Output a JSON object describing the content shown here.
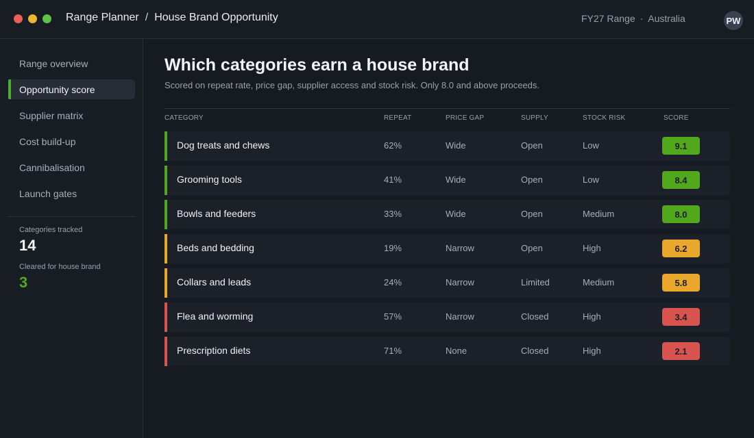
{
  "topbar": {
    "breadcrumb": [
      "Range Planner",
      "House Brand Opportunity"
    ],
    "breadcrumb_sep": "/",
    "range": "FY27 Range",
    "meta_sep": "·",
    "region": "Australia",
    "avatar_initials": "PW"
  },
  "sidebar": {
    "items": [
      {
        "label": "Range overview",
        "active": false
      },
      {
        "label": "Opportunity score",
        "active": true
      },
      {
        "label": "Supplier matrix",
        "active": false
      },
      {
        "label": "Cost build-up",
        "active": false
      },
      {
        "label": "Cannibalisation",
        "active": false
      },
      {
        "label": "Launch gates",
        "active": false
      }
    ],
    "stats": {
      "tracked_label": "Categories tracked",
      "tracked_value": "14",
      "cleared_label": "Cleared for house brand",
      "cleared_value": "3"
    }
  },
  "main": {
    "title": "Which categories earn a house brand",
    "subtitle": "Scored on repeat rate, price gap, supplier access and stock risk. Only 8.0 and above proceeds.",
    "columns": {
      "category": "CATEGORY",
      "repeat": "REPEAT",
      "price_gap": "PRICE GAP",
      "supply": "SUPPLY",
      "stock_risk": "STOCK RISK",
      "score": "SCORE"
    },
    "rows": [
      {
        "category": "Dog treats and chews",
        "repeat": "62%",
        "price_gap": "Wide",
        "supply": "Open",
        "stock_risk": "Low",
        "score": "9.1",
        "status": "pass"
      },
      {
        "category": "Grooming tools",
        "repeat": "41%",
        "price_gap": "Wide",
        "supply": "Open",
        "stock_risk": "Low",
        "score": "8.4",
        "status": "pass"
      },
      {
        "category": "Bowls and feeders",
        "repeat": "33%",
        "price_gap": "Wide",
        "supply": "Open",
        "stock_risk": "Medium",
        "score": "8.0",
        "status": "pass"
      },
      {
        "category": "Beds and bedding",
        "repeat": "19%",
        "price_gap": "Narrow",
        "supply": "Open",
        "stock_risk": "High",
        "score": "6.2",
        "status": "warn"
      },
      {
        "category": "Collars and leads",
        "repeat": "24%",
        "price_gap": "Narrow",
        "supply": "Limited",
        "stock_risk": "Medium",
        "score": "5.8",
        "status": "warn"
      },
      {
        "category": "Flea and worming",
        "repeat": "57%",
        "price_gap": "Narrow",
        "supply": "Closed",
        "stock_risk": "High",
        "score": "3.4",
        "status": "fail"
      },
      {
        "category": "Prescription diets",
        "repeat": "71%",
        "price_gap": "None",
        "supply": "Closed",
        "stock_risk": "High",
        "score": "2.1",
        "status": "fail"
      }
    ]
  },
  "colors": {
    "pass": "#52a81c",
    "warn": "#e9a72c",
    "fail": "#d9534f",
    "accent": "#4cae2a"
  }
}
